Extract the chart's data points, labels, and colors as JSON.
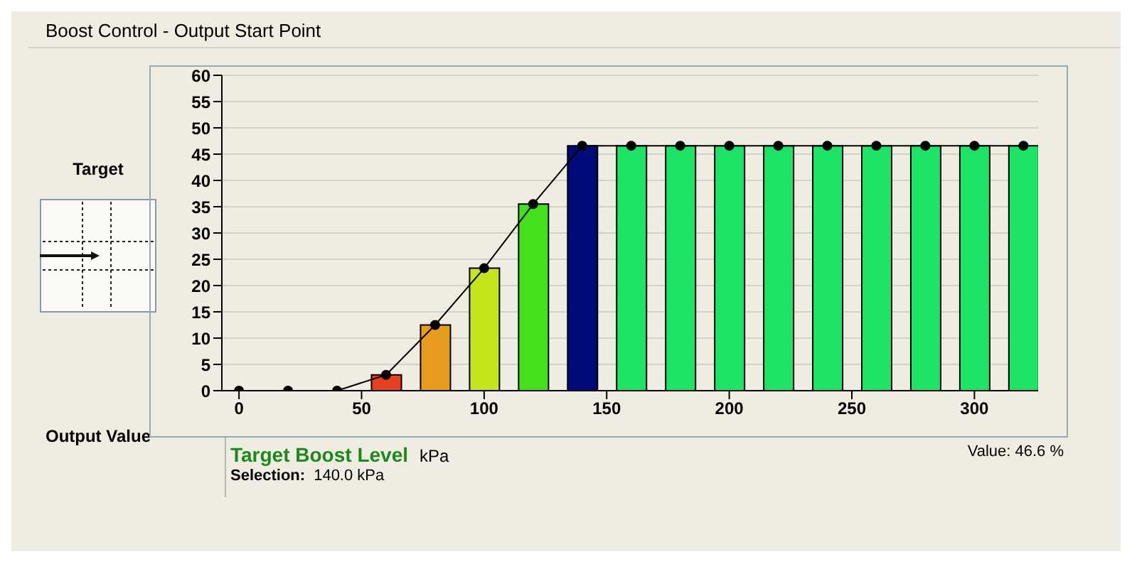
{
  "chart_data": {
    "type": "bar",
    "title": "Boost Control - Output Start Point",
    "xlabel": "Target Boost Level",
    "ylabel": "Output Value",
    "annotations": [
      "kPa",
      "Selection:",
      "140.0 kPa",
      "Value: 46.6 %",
      "Target"
    ],
    "x": [
      0,
      20,
      40,
      60,
      80,
      100,
      120,
      140,
      160,
      180,
      200,
      220,
      240,
      260,
      280,
      300,
      320
    ],
    "series": [
      {
        "colors": [
          "#e8401c",
          "#e8401c",
          "#e8401c",
          "#e8401c",
          "#e89c1c",
          "#c4e41c",
          "#44e01c",
          "#000a78",
          "#1ce464",
          "#1ce464",
          "#1ce464",
          "#1ce464",
          "#1ce464",
          "#1ce464",
          "#1ce464",
          "#1ce464",
          "#1ce464"
        ],
        "values": [
          0,
          0,
          0,
          3,
          12.5,
          23.3,
          35.5,
          46.6,
          46.6,
          46.6,
          46.6,
          46.6,
          46.6,
          46.6,
          46.6,
          46.6,
          46.6
        ]
      },
      {
        "type": "line",
        "color": "#000000",
        "marker": "circle",
        "values": [
          0,
          0,
          0,
          3,
          12.5,
          23.3,
          35.5,
          46.6,
          46.6,
          46.6,
          46.6,
          46.6,
          46.6,
          46.6,
          46.6,
          46.6,
          46.6
        ]
      }
    ],
    "xlim": [
      -7,
      326
    ],
    "xticks": [
      0,
      50,
      100,
      150,
      200,
      250,
      300
    ],
    "ylim": [
      0,
      60
    ],
    "yticks": [
      0,
      5,
      10,
      15,
      20,
      25,
      30,
      35,
      40,
      45,
      50,
      55,
      60
    ],
    "grid": "y",
    "legend": false
  }
}
